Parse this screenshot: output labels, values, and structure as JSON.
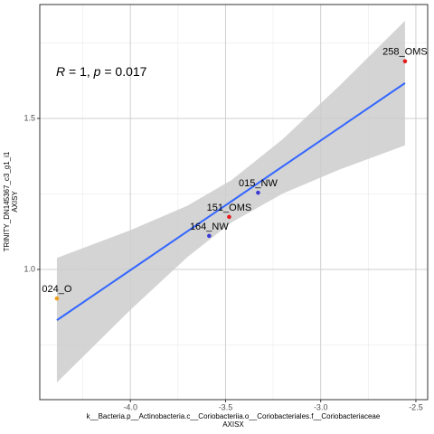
{
  "chart_data": {
    "type": "scatter",
    "annotation": [
      "R",
      " = 1, ",
      "p",
      " = 0.017"
    ],
    "x_label": [
      "k__Bacteria.p__Actinobacteria.c__Coriobacteriia.o__Coriobacteriales.f__Coriobacteriaceae",
      "AXISX"
    ],
    "y_label": [
      "TRINITY_DN145367_c3_g1_i1",
      "AXISY"
    ],
    "xlim": [
      -4.476,
      -2.438
    ],
    "ylim": [
      0.569,
      1.877
    ],
    "xticks": [
      {
        "value": -4,
        "label": "-4.0"
      },
      -3.5,
      {
        "value": -3,
        "label": "-3.0"
      },
      -2.5
    ],
    "yticks": [
      {
        "value": 1,
        "label": "1.0"
      },
      1.5
    ],
    "xminorticks": [
      -4.25,
      -3.75,
      -3.25,
      -2.75
    ],
    "yminorticks": [
      0.75,
      1.25,
      1.75
    ],
    "grid": true,
    "points": [
      {
        "label": "258_OMS",
        "x": -2.557,
        "y": 1.689,
        "color": "#e41a1c"
      },
      {
        "label": "015_NW",
        "x": -3.329,
        "y": 1.254,
        "color": "#3b3bd4"
      },
      {
        "label": "151_OMS",
        "x": -3.481,
        "y": 1.174,
        "color": "#e41a1c"
      },
      {
        "label": "164_NW",
        "x": -3.586,
        "y": 1.111,
        "color": "#3b3bd4"
      },
      {
        "label": "024_O",
        "x": -4.386,
        "y": 0.904,
        "color": "#f0a020"
      }
    ],
    "fit": {
      "x": [
        -4.386,
        -2.557
      ],
      "values": [
        0.832,
        1.617
      ],
      "color": "#3366ff"
    },
    "band": {
      "x": [
        -4.386,
        -4.0,
        -3.7,
        -3.468,
        -3.2,
        -2.9,
        -2.557
      ],
      "lower": [
        0.626,
        0.866,
        1.041,
        1.156,
        1.251,
        1.331,
        1.411
      ],
      "upper": [
        1.038,
        1.13,
        1.211,
        1.296,
        1.431,
        1.609,
        1.823
      ],
      "color": "#cccccc"
    }
  }
}
